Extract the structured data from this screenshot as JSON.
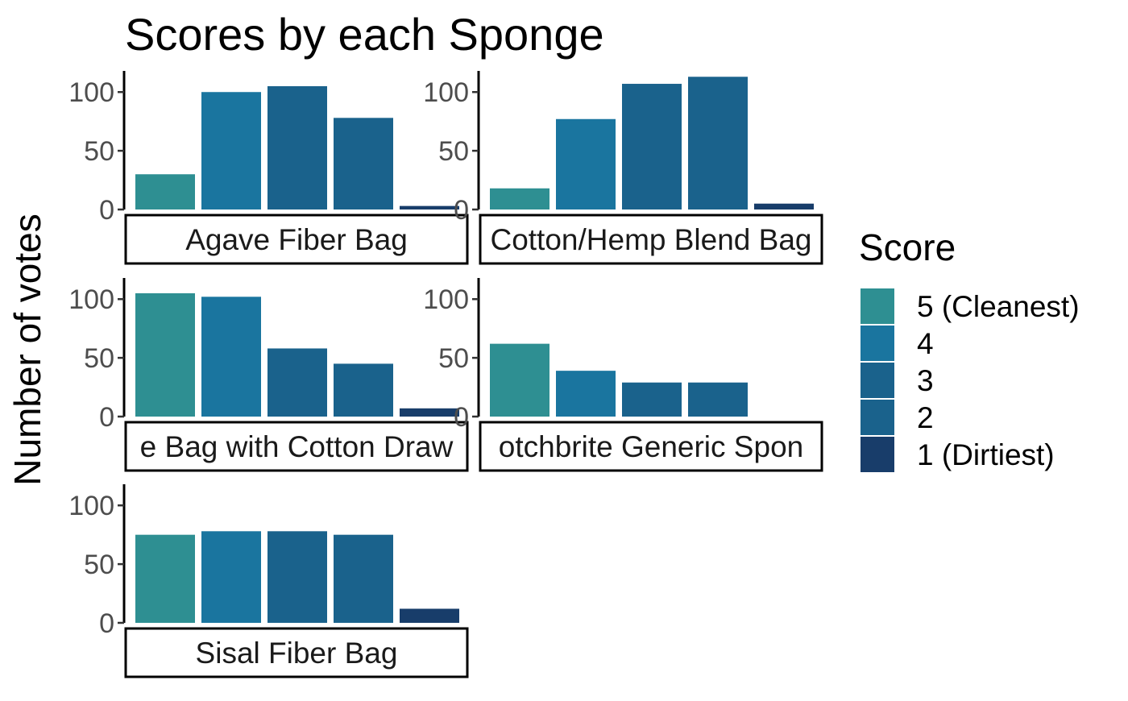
{
  "chart_data": {
    "type": "bar",
    "title": "Scores by each Sponge",
    "xlabel": "",
    "ylabel": "Number of votes",
    "ylim": [
      0,
      118
    ],
    "yticks": [
      0,
      50,
      100
    ],
    "grid": false,
    "legend": {
      "title": "Score",
      "position": "right",
      "items": [
        {
          "label": "5 (Cleanest)",
          "color": "#2e8f92"
        },
        {
          "label": "4",
          "color": "#1a759f"
        },
        {
          "label": "3",
          "color": "#1a628c"
        },
        {
          "label": "2",
          "color": "#1a628c"
        },
        {
          "label": "1 (Dirtiest)",
          "color": "#183d6a"
        }
      ]
    },
    "categories": [
      "5 (Cleanest)",
      "4",
      "3",
      "2",
      "1 (Dirtiest)"
    ],
    "panels": [
      {
        "name": "Agave Fiber Bag",
        "values": [
          30,
          100,
          105,
          78,
          3
        ]
      },
      {
        "name": "Cotton/Hemp Blend Bag",
        "values": [
          18,
          77,
          107,
          113,
          5
        ]
      },
      {
        "name": "e Bag with Cotton Draw",
        "values": [
          105,
          102,
          58,
          45,
          7
        ]
      },
      {
        "name": "otchbrite Generic Spon",
        "values": [
          62,
          39,
          29,
          29,
          0
        ]
      },
      {
        "name": "Sisal Fiber Bag",
        "values": [
          75,
          78,
          78,
          75,
          12
        ]
      }
    ]
  }
}
